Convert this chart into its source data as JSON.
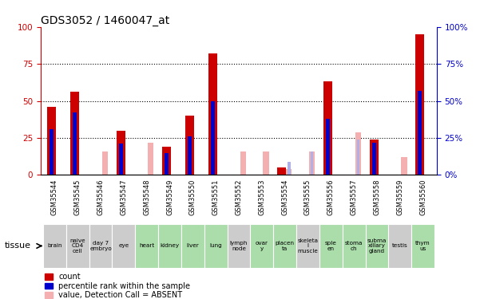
{
  "title": "GDS3052 / 1460047_at",
  "gsm_labels": [
    "GSM35544",
    "GSM35545",
    "GSM35546",
    "GSM35547",
    "GSM35548",
    "GSM35549",
    "GSM35550",
    "GSM35551",
    "GSM35552",
    "GSM35553",
    "GSM35554",
    "GSM35555",
    "GSM35556",
    "GSM35557",
    "GSM35558",
    "GSM35559",
    "GSM35560"
  ],
  "tissue_labels": [
    "brain",
    "naive\nCD4\ncell",
    "day 7\nembryо",
    "eye",
    "heart",
    "kidney",
    "liver",
    "lung",
    "lymph\nnode",
    "ovar\ny",
    "placen\nta",
    "skeleta\nl\nmuscle",
    "sple\nen",
    "stoma\nch",
    "subma\nxillary\ngland",
    "testis",
    "thym\nus"
  ],
  "tissue_bg": [
    "#cccccc",
    "#cccccc",
    "#cccccc",
    "#cccccc",
    "#aaddaa",
    "#aaddaa",
    "#aaddaa",
    "#aaddaa",
    "#cccccc",
    "#aaddaa",
    "#aaddaa",
    "#cccccc",
    "#aaddaa",
    "#aaddaa",
    "#aaddaa",
    "#cccccc",
    "#aaddaa"
  ],
  "count_values": [
    46,
    56,
    0,
    30,
    0,
    19,
    40,
    82,
    0,
    0,
    5,
    0,
    63,
    0,
    24,
    0,
    95
  ],
  "rank_values": [
    31,
    42,
    0,
    21,
    0,
    15,
    26,
    50,
    0,
    0,
    0,
    0,
    38,
    0,
    22,
    0,
    57
  ],
  "absent_count": [
    0,
    0,
    16,
    0,
    22,
    0,
    0,
    0,
    16,
    16,
    4,
    16,
    0,
    29,
    0,
    12,
    0
  ],
  "absent_rank": [
    0,
    0,
    0,
    0,
    0,
    0,
    0,
    0,
    0,
    0,
    9,
    16,
    0,
    24,
    0,
    0,
    0
  ],
  "color_red": "#cc0000",
  "color_blue": "#0000cc",
  "color_pink": "#f4b0b0",
  "color_lightblue": "#b0b0e8",
  "ylim": [
    0,
    100
  ],
  "yticks": [
    0,
    25,
    50,
    75,
    100
  ],
  "figsize": [
    6.01,
    3.75
  ],
  "dpi": 100
}
